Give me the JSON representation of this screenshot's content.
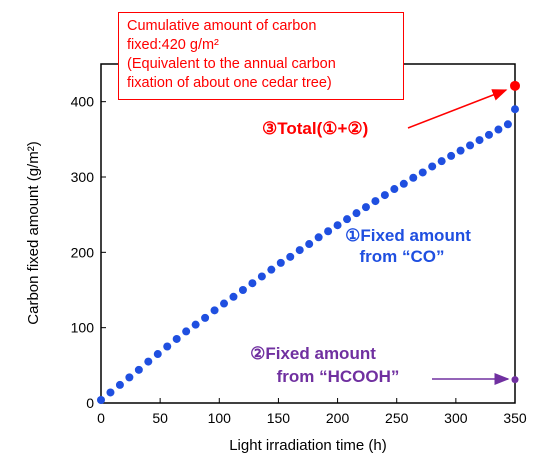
{
  "chart_data": {
    "type": "scatter",
    "xlabel": "Light irradiation time (h)",
    "ylabel": "Carbon fixed amount (g/m²)",
    "xlim": [
      0,
      350
    ],
    "ylim": [
      0,
      450
    ],
    "xticks": [
      "0",
      "50",
      "100",
      "150",
      "200",
      "250",
      "300",
      "350"
    ],
    "yticks": [
      "0",
      "100",
      "200",
      "300",
      "400"
    ],
    "grid": false,
    "series": [
      {
        "name": "①Fixed amount from “CO”",
        "color": "#1f4fe0",
        "x": [
          0,
          8,
          16,
          24,
          32,
          40,
          48,
          56,
          64,
          72,
          80,
          88,
          96,
          104,
          112,
          120,
          128,
          136,
          144,
          152,
          160,
          168,
          176,
          184,
          192,
          200,
          208,
          216,
          224,
          232,
          240,
          248,
          256,
          264,
          272,
          280,
          288,
          296,
          304,
          312,
          320,
          328,
          336,
          344,
          350
        ],
        "y": [
          4,
          14,
          24,
          34,
          44,
          55,
          65,
          75,
          85,
          95,
          104,
          113,
          123,
          132,
          141,
          150,
          159,
          168,
          177,
          186,
          194,
          203,
          211,
          220,
          228,
          236,
          244,
          252,
          260,
          268,
          276,
          284,
          291,
          299,
          306,
          314,
          321,
          328,
          335,
          342,
          349,
          356,
          363,
          370,
          390
        ]
      },
      {
        "name": "②Fixed amount from “HCOOH”",
        "color": "#7030a0",
        "x": [
          350
        ],
        "y": [
          31
        ]
      },
      {
        "name": "③Total(①+②)",
        "color": "#ff0000",
        "x": [
          350
        ],
        "y": [
          421
        ]
      }
    ],
    "annotations": {
      "co_label": [
        "①Fixed amount",
        "from “CO”"
      ],
      "hcooh_label": [
        "②Fixed amount",
        "from “HCOOH”"
      ],
      "total_label": "③Total(①+②)",
      "callout_lines": [
        "Cumulative amount of carbon",
        "fixed:420 g/m²",
        "(Equivalent to the annual carbon",
        "fixation of about one cedar tree)"
      ]
    }
  }
}
